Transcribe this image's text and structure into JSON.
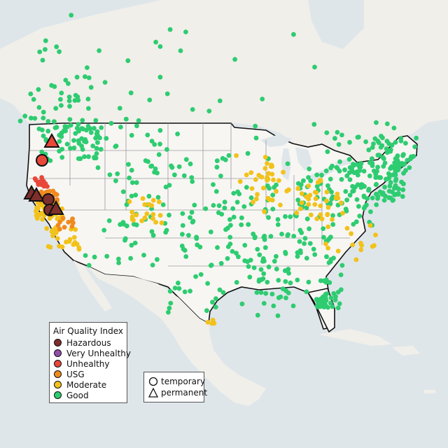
{
  "map": {
    "legend": {
      "title": "Air Quality Index",
      "categories": [
        {
          "label": "Hazardous",
          "color": "#7e2f2b"
        },
        {
          "label": "Very Unhealthy",
          "color": "#8f4fa8"
        },
        {
          "label": "Unhealthy",
          "color": "#e8473a"
        },
        {
          "label": "USG",
          "color": "#f08a1e"
        },
        {
          "label": "Moderate",
          "color": "#f2c21a"
        },
        {
          "label": "Good",
          "color": "#2ecc71"
        }
      ]
    },
    "monitor_types": [
      {
        "label": "temporary",
        "symbol": "circle-icon"
      },
      {
        "label": "permanent",
        "symbol": "triangle-icon"
      }
    ],
    "colors": {
      "ocean": "#dfe6ea",
      "land": "#f3f1ec",
      "us_land": "#f7f6f3",
      "border": "#111111",
      "state_lines": "#9a9a9a"
    }
  }
}
